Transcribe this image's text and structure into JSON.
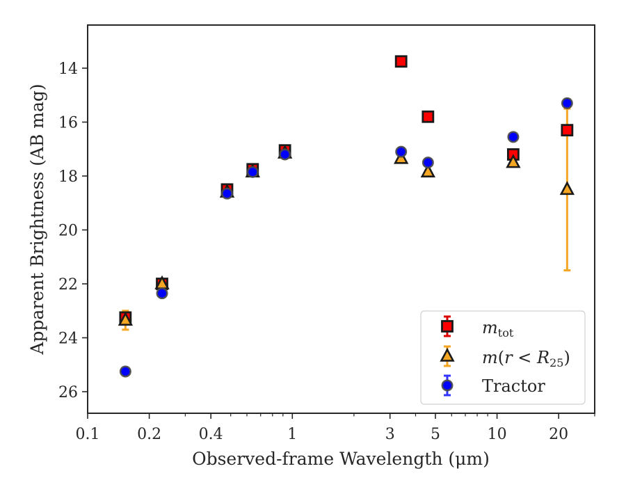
{
  "chart_data": {
    "type": "scatter",
    "xlabel": "Observed-frame Wavelength (μm)",
    "ylabel": "Apparent Brightness (AB mag)",
    "x_scale": "log",
    "xlim": [
      0.1,
      30
    ],
    "ylim": [
      26.8,
      12.4
    ],
    "y_inverted": true,
    "x_major_ticks": [
      0.1,
      0.2,
      0.4,
      1,
      3,
      5,
      10,
      20
    ],
    "x_tick_labels": [
      "0.1",
      "0.2",
      "0.4",
      "1",
      "3",
      "5",
      "10",
      "20"
    ],
    "y_ticks": [
      14,
      16,
      18,
      20,
      22,
      24,
      26
    ],
    "y_tick_labels": [
      "14",
      "16",
      "18",
      "20",
      "22",
      "24",
      "26"
    ],
    "grid": false,
    "legend": {
      "placement": "bottom-right",
      "entries": [
        "m_tot",
        "m(r < R25)",
        "Tractor"
      ]
    },
    "series": [
      {
        "name": "m_tot",
        "marker": "square",
        "color": "#ff0000",
        "err_color": "#dd0000",
        "x": [
          0.153,
          0.231,
          0.48,
          0.64,
          0.92,
          3.4,
          4.6,
          12.0,
          22.0
        ],
        "y": [
          23.25,
          22.0,
          18.5,
          17.75,
          17.05,
          13.75,
          15.8,
          17.2,
          16.3
        ],
        "err": [
          0.1,
          0.05,
          0.05,
          0.05,
          0.05,
          0.05,
          0.05,
          0.1,
          0.1
        ]
      },
      {
        "name": "m(r < R25)",
        "marker": "triangle",
        "color": "#f5a623",
        "err_color": "#f5a623",
        "x": [
          0.153,
          0.231,
          0.48,
          0.64,
          0.92,
          3.4,
          4.6,
          12.0,
          22.0
        ],
        "y": [
          23.35,
          22.0,
          18.6,
          17.85,
          17.15,
          17.35,
          17.85,
          17.5,
          18.5
        ],
        "err": [
          0.35,
          0.1,
          0.05,
          0.05,
          0.05,
          0.05,
          0.05,
          0.1,
          3.0
        ]
      },
      {
        "name": "Tractor",
        "marker": "circle",
        "color": "#0000ff",
        "err_color": "#3333ff",
        "x": [
          0.153,
          0.231,
          0.48,
          0.64,
          0.92,
          3.4,
          4.6,
          12.0,
          22.0
        ],
        "y": [
          25.25,
          22.35,
          18.65,
          17.85,
          17.2,
          17.1,
          17.5,
          16.55,
          15.3
        ],
        "err": [
          0.05,
          0.05,
          0.05,
          0.05,
          0.05,
          0.05,
          0.05,
          0.05,
          0.05
        ]
      }
    ]
  }
}
